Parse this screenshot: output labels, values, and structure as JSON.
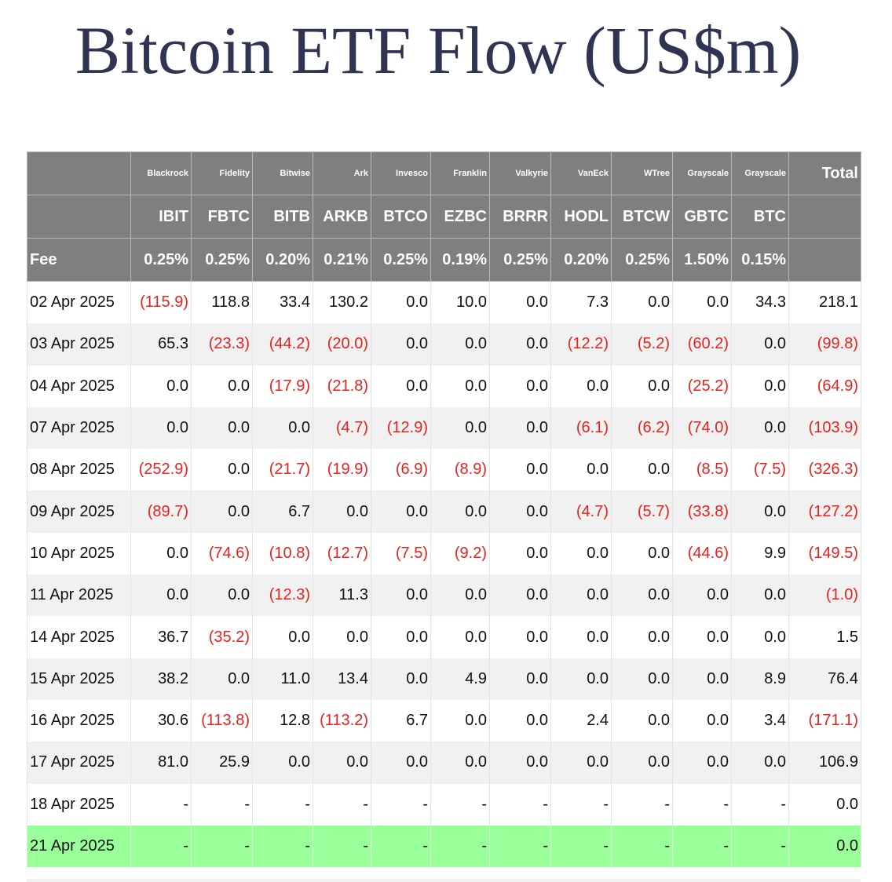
{
  "title": "Bitcoin ETF Flow (US$m)",
  "header": {
    "issuers": [
      "Blackrock",
      "Fidelity",
      "Bitwise",
      "Ark",
      "Invesco",
      "Franklin",
      "Valkyrie",
      "VanEck",
      "WTree",
      "Grayscale",
      "Grayscale"
    ],
    "total_label": "Total",
    "tickers": [
      "IBIT",
      "FBTC",
      "BITB",
      "ARKB",
      "BTCO",
      "EZBC",
      "BRRR",
      "HODL",
      "BTCW",
      "GBTC",
      "BTC"
    ],
    "fee_label": "Fee",
    "fees": [
      "0.25%",
      "0.25%",
      "0.20%",
      "0.21%",
      "0.25%",
      "0.19%",
      "0.25%",
      "0.20%",
      "0.25%",
      "1.50%",
      "0.15%"
    ]
  },
  "rows": [
    {
      "date": "02 Apr 2025",
      "values": [
        "(115.9)",
        "118.8",
        "33.4",
        "130.2",
        "0.0",
        "10.0",
        "0.0",
        "7.3",
        "0.0",
        "0.0",
        "34.3"
      ],
      "total": "218.1",
      "highlight": false
    },
    {
      "date": "03 Apr 2025",
      "values": [
        "65.3",
        "(23.3)",
        "(44.2)",
        "(20.0)",
        "0.0",
        "0.0",
        "0.0",
        "(12.2)",
        "(5.2)",
        "(60.2)",
        "0.0"
      ],
      "total": "(99.8)",
      "highlight": false
    },
    {
      "date": "04 Apr 2025",
      "values": [
        "0.0",
        "0.0",
        "(17.9)",
        "(21.8)",
        "0.0",
        "0.0",
        "0.0",
        "0.0",
        "0.0",
        "(25.2)",
        "0.0"
      ],
      "total": "(64.9)",
      "highlight": false
    },
    {
      "date": "07 Apr 2025",
      "values": [
        "0.0",
        "0.0",
        "0.0",
        "(4.7)",
        "(12.9)",
        "0.0",
        "0.0",
        "(6.1)",
        "(6.2)",
        "(74.0)",
        "0.0"
      ],
      "total": "(103.9)",
      "highlight": false
    },
    {
      "date": "08 Apr 2025",
      "values": [
        "(252.9)",
        "0.0",
        "(21.7)",
        "(19.9)",
        "(6.9)",
        "(8.9)",
        "0.0",
        "0.0",
        "0.0",
        "(8.5)",
        "(7.5)"
      ],
      "total": "(326.3)",
      "highlight": false
    },
    {
      "date": "09 Apr 2025",
      "values": [
        "(89.7)",
        "0.0",
        "6.7",
        "0.0",
        "0.0",
        "0.0",
        "0.0",
        "(4.7)",
        "(5.7)",
        "(33.8)",
        "0.0"
      ],
      "total": "(127.2)",
      "highlight": false
    },
    {
      "date": "10 Apr 2025",
      "values": [
        "0.0",
        "(74.6)",
        "(10.8)",
        "(12.7)",
        "(7.5)",
        "(9.2)",
        "0.0",
        "0.0",
        "0.0",
        "(44.6)",
        "9.9"
      ],
      "total": "(149.5)",
      "highlight": false
    },
    {
      "date": "11 Apr 2025",
      "values": [
        "0.0",
        "0.0",
        "(12.3)",
        "11.3",
        "0.0",
        "0.0",
        "0.0",
        "0.0",
        "0.0",
        "0.0",
        "0.0"
      ],
      "total": "(1.0)",
      "highlight": false
    },
    {
      "date": "14 Apr 2025",
      "values": [
        "36.7",
        "(35.2)",
        "0.0",
        "0.0",
        "0.0",
        "0.0",
        "0.0",
        "0.0",
        "0.0",
        "0.0",
        "0.0"
      ],
      "total": "1.5",
      "highlight": false
    },
    {
      "date": "15 Apr 2025",
      "values": [
        "38.2",
        "0.0",
        "11.0",
        "13.4",
        "0.0",
        "4.9",
        "0.0",
        "0.0",
        "0.0",
        "0.0",
        "8.9"
      ],
      "total": "76.4",
      "highlight": false
    },
    {
      "date": "16 Apr 2025",
      "values": [
        "30.6",
        "(113.8)",
        "12.8",
        "(113.2)",
        "6.7",
        "0.0",
        "0.0",
        "2.4",
        "0.0",
        "0.0",
        "3.4"
      ],
      "total": "(171.1)",
      "highlight": false
    },
    {
      "date": "17 Apr 2025",
      "values": [
        "81.0",
        "25.9",
        "0.0",
        "0.0",
        "0.0",
        "0.0",
        "0.0",
        "0.0",
        "0.0",
        "0.0",
        "0.0"
      ],
      "total": "106.9",
      "highlight": false
    },
    {
      "date": "18 Apr 2025",
      "values": [
        "-",
        "-",
        "-",
        "-",
        "-",
        "-",
        "-",
        "-",
        "-",
        "-",
        "-"
      ],
      "total": "0.0",
      "highlight": false
    },
    {
      "date": "21 Apr 2025",
      "values": [
        "-",
        "-",
        "-",
        "-",
        "-",
        "-",
        "-",
        "-",
        "-",
        "-",
        "-"
      ],
      "total": "0.0",
      "highlight": true
    }
  ],
  "colors": {
    "title": "#2f3452",
    "header_bg": "#7f7f7f",
    "header_text": "#ffffff",
    "negative": "#e8211d",
    "row_alt": "#f1f1f1",
    "highlight_row": "#99ff99"
  }
}
